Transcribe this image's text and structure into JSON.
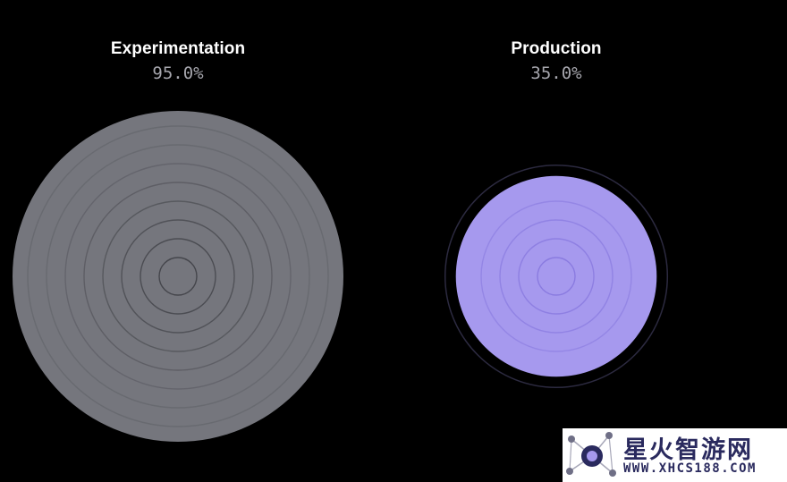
{
  "chart_data": {
    "type": "radial-gauge",
    "max": 100,
    "gauges": [
      {
        "name": "Experimentation",
        "value_label": "95.0%",
        "value": 95.0,
        "fill_color": "#75767d",
        "ring_color": "#45464c"
      },
      {
        "name": "Production",
        "value_label": "35.0%",
        "value": 35.0,
        "fill_color": "#a699ee",
        "ring_color": "#8a7be0",
        "track_color": "#2c2a40"
      }
    ]
  },
  "colors": {
    "background": "#000000",
    "title": "#ffffff",
    "value_text": "#a6a6ad"
  },
  "watermark": {
    "name": "星火智游网",
    "url": "WWW.XHCS188.COM"
  }
}
